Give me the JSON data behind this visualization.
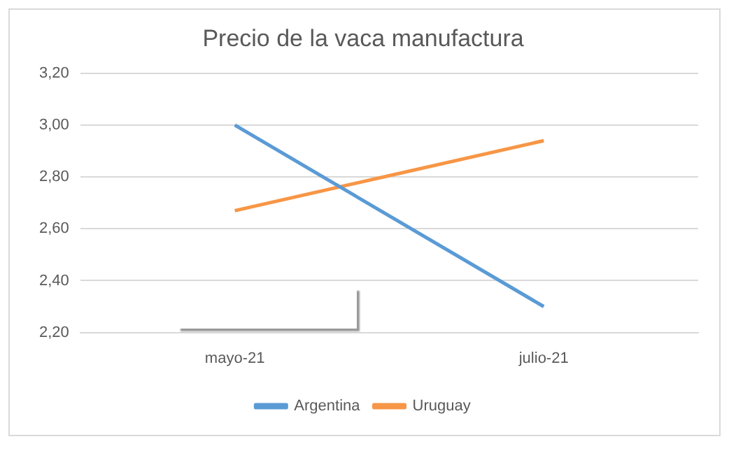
{
  "chart_data": {
    "type": "line",
    "title": "Precio de la vaca manufactura",
    "categories": [
      "mayo-21",
      "julio-21"
    ],
    "series": [
      {
        "name": "Argentina",
        "color": "#5b9bd5",
        "values": [
          3.0,
          2.3
        ]
      },
      {
        "name": "Uruguay",
        "color": "#f79646",
        "values": [
          2.67,
          2.94
        ]
      }
    ],
    "ylim": [
      2.2,
      3.2
    ],
    "yticks": [
      {
        "value": 2.2,
        "label": "2,20"
      },
      {
        "value": 2.4,
        "label": "2,40"
      },
      {
        "value": 2.6,
        "label": "2,60"
      },
      {
        "value": 2.8,
        "label": "2,80"
      },
      {
        "value": 3.0,
        "label": "3,00"
      },
      {
        "value": 3.2,
        "label": "3,20"
      }
    ],
    "grid": "y",
    "legend": "bottom",
    "marker": "none",
    "line_style": "solid"
  }
}
